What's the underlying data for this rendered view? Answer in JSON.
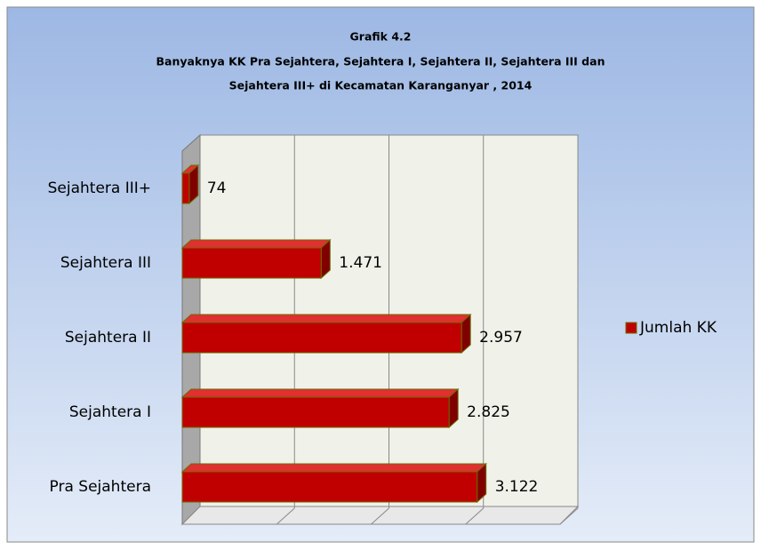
{
  "chart_data": {
    "type": "bar",
    "orientation": "horizontal",
    "title": [
      "Grafik 4.2",
      "Banyaknya KK Pra Sejahtera, Sejahtera I, Sejahtera II, Sejahtera III dan",
      "Sejahtera III+ di Kecamatan Karanganyar , 2014"
    ],
    "categories": [
      "Pra Sejahtera",
      "Sejahtera I",
      "Sejahtera II",
      "Sejahtera III",
      "Sejahtera III+"
    ],
    "series": [
      {
        "name": "Jumlah KK",
        "color": "#c00000",
        "values": [
          3122,
          2825,
          2957,
          1471,
          74
        ],
        "value_labels": [
          "3.122",
          "2.825",
          "2.957",
          "1.471",
          "74"
        ]
      }
    ],
    "xlim": [
      0,
      4000
    ],
    "xticks": [
      0,
      1000,
      2000,
      3000,
      4000
    ],
    "grid": true,
    "legend": "right"
  }
}
